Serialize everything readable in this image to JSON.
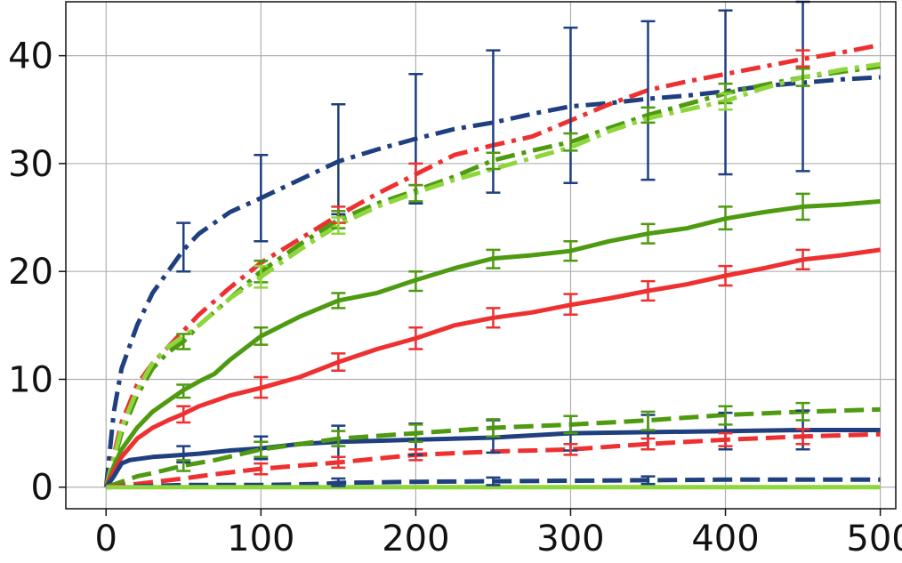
{
  "chart_data": {
    "type": "line",
    "title": "",
    "xlabel": "",
    "ylabel": "",
    "xlim": [
      -26,
      510
    ],
    "ylim": [
      -2,
      45
    ],
    "grid": true,
    "legend": "none",
    "x_ticks": [
      0,
      100,
      200,
      300,
      400,
      500
    ],
    "y_ticks": [
      0,
      10,
      20,
      30,
      40
    ],
    "series": [
      {
        "color": "#1f3f7f",
        "style": "dashdot",
        "x": [
          0,
          5,
          10,
          20,
          30,
          40,
          50,
          60,
          80,
          100,
          125,
          150,
          175,
          200,
          225,
          250,
          275,
          300,
          325,
          350,
          375,
          400,
          425,
          450,
          475,
          500
        ],
        "y": [
          0,
          7,
          11,
          15,
          18,
          20,
          22,
          23.5,
          25.5,
          26.8,
          28.5,
          30.2,
          31.3,
          32.3,
          33.2,
          33.8,
          34.6,
          35.3,
          35.6,
          36,
          36.3,
          36.7,
          37.2,
          37.5,
          37.8,
          38
        ],
        "err_x": [
          50,
          100,
          150,
          200,
          250,
          300,
          350,
          400,
          450
        ],
        "err_y": [
          22,
          26.8,
          30.3,
          32.3,
          33.9,
          35.3,
          35.8,
          36.6,
          37.3
        ],
        "err_lo": [
          20,
          22.8,
          25.3,
          26.3,
          27.3,
          28.2,
          28.5,
          29,
          29.3
        ],
        "err_hi": [
          24.5,
          30.8,
          35.5,
          38.3,
          40.5,
          42.6,
          43.2,
          44.2,
          45
        ]
      },
      {
        "color": "#ee3030",
        "style": "dashdot",
        "x": [
          0,
          10,
          20,
          30,
          40,
          50,
          60,
          80,
          100,
          125,
          150,
          175,
          200,
          225,
          250,
          275,
          300,
          325,
          350,
          375,
          400,
          425,
          450,
          475,
          500
        ],
        "y": [
          0,
          6,
          9.5,
          11.5,
          13,
          14.5,
          16,
          18.5,
          20.8,
          23,
          25.2,
          27.2,
          29,
          30.8,
          31.7,
          32.5,
          34,
          35.5,
          36.8,
          37.6,
          38.3,
          39,
          39.7,
          40.3,
          41
        ],
        "err_x": [
          150,
          200,
          450
        ],
        "err_y": [
          25.2,
          29,
          39.7
        ],
        "err_lo": [
          24.5,
          28,
          39
        ],
        "err_hi": [
          26,
          30,
          40.5
        ]
      },
      {
        "color": "#4e9a10",
        "style": "dashdot",
        "x": [
          0,
          10,
          20,
          30,
          40,
          50,
          60,
          80,
          100,
          125,
          150,
          175,
          200,
          225,
          250,
          275,
          300,
          325,
          350,
          375,
          400,
          425,
          450,
          475,
          500
        ],
        "y": [
          0,
          5,
          8.5,
          11,
          12.5,
          13.5,
          15,
          17.5,
          20,
          22.5,
          24.8,
          26.3,
          27.5,
          28.8,
          30.3,
          31.2,
          32,
          33.3,
          34.5,
          35.5,
          36.5,
          37.3,
          38,
          38.5,
          39
        ],
        "err_x": [
          50,
          100,
          150,
          200,
          250,
          300,
          350,
          400,
          450
        ],
        "err_y": [
          13.5,
          20,
          24.8,
          27.3,
          30.3,
          32,
          34.5,
          36.5,
          38
        ],
        "err_lo": [
          12.8,
          19,
          24,
          26.5,
          29.5,
          31.2,
          33.8,
          35.6,
          37.2
        ],
        "err_hi": [
          14.2,
          21,
          25.6,
          28,
          31,
          32.8,
          35.2,
          37.4,
          38.8
        ]
      },
      {
        "color": "#8ed63c",
        "style": "dashdot",
        "x": [
          0,
          10,
          20,
          30,
          40,
          50,
          60,
          80,
          100,
          125,
          150,
          175,
          200,
          225,
          250,
          275,
          300,
          325,
          350,
          375,
          400,
          425,
          450,
          475,
          500
        ],
        "y": [
          0,
          5.5,
          9,
          11.5,
          13,
          14,
          15,
          17.5,
          19.5,
          22,
          24.3,
          26,
          27.3,
          28.5,
          29.5,
          30.5,
          31.5,
          33,
          34.2,
          35,
          35.8,
          37,
          38,
          38.7,
          39.2
        ],
        "err_x": [
          100,
          150,
          400
        ],
        "err_y": [
          19.5,
          24.3,
          35.8
        ],
        "err_lo": [
          18.5,
          23.5,
          35
        ],
        "err_hi": [
          20.5,
          25,
          36.5
        ]
      },
      {
        "color": "#4e9a10",
        "style": "solid",
        "x": [
          0,
          5,
          10,
          20,
          30,
          40,
          50,
          60,
          70,
          80,
          100,
          125,
          150,
          175,
          200,
          225,
          250,
          275,
          300,
          325,
          350,
          375,
          400,
          425,
          450,
          475,
          500
        ],
        "y": [
          0,
          2,
          3.5,
          5.5,
          7,
          8,
          9,
          9.8,
          10.5,
          11.8,
          14,
          15.8,
          17.3,
          18,
          19.2,
          20.3,
          21.2,
          21.5,
          21.9,
          22.8,
          23.5,
          24,
          24.9,
          25.5,
          26,
          26.2,
          26.5
        ],
        "err_x": [
          50,
          100,
          150,
          200,
          250,
          300,
          350,
          400,
          450
        ],
        "err_y": [
          9,
          14,
          17.3,
          19.2,
          21.2,
          21.9,
          23.5,
          24.9,
          26
        ],
        "err_lo": [
          8.3,
          13.2,
          16.6,
          18.2,
          20.3,
          21,
          22.6,
          23.9,
          24.8
        ],
        "err_hi": [
          9.5,
          14.8,
          18,
          20,
          22,
          22.8,
          24.4,
          26,
          27.2
        ]
      },
      {
        "color": "#ee3030",
        "style": "solid",
        "x": [
          0,
          5,
          10,
          20,
          30,
          40,
          50,
          60,
          80,
          100,
          125,
          150,
          175,
          200,
          225,
          250,
          275,
          300,
          325,
          350,
          375,
          400,
          425,
          450,
          475,
          500
        ],
        "y": [
          0,
          1.5,
          2.8,
          4.5,
          5.5,
          6.2,
          6.8,
          7.5,
          8.5,
          9.2,
          10.2,
          11.6,
          12.8,
          13.8,
          15,
          15.7,
          16.2,
          16.9,
          17.5,
          18.2,
          18.8,
          19.6,
          20.3,
          21.1,
          21.5,
          22
        ],
        "err_x": [
          50,
          100,
          150,
          200,
          250,
          300,
          350,
          400,
          450
        ],
        "err_y": [
          6.8,
          9.2,
          11.6,
          13.8,
          15.7,
          16.9,
          18.2,
          19.6,
          21.1
        ],
        "err_lo": [
          6,
          8.3,
          10.8,
          12.8,
          14.8,
          16,
          17.3,
          18.7,
          20.2
        ],
        "err_hi": [
          7.5,
          10.2,
          12.4,
          14.8,
          16.6,
          17.9,
          19.1,
          20.5,
          22
        ]
      },
      {
        "color": "#1f3f7f",
        "style": "solid",
        "x": [
          0,
          5,
          10,
          15,
          20,
          30,
          40,
          50,
          60,
          80,
          100,
          125,
          150,
          175,
          200,
          250,
          300,
          350,
          400,
          450,
          500
        ],
        "y": [
          0,
          1,
          2.2,
          2.5,
          2.6,
          2.8,
          2.9,
          3,
          3.1,
          3.4,
          3.6,
          4,
          4.2,
          4.3,
          4.4,
          4.6,
          5,
          5.1,
          5.2,
          5.3,
          5.3
        ],
        "err_x": [
          50,
          100,
          150,
          200,
          250,
          300,
          350,
          400,
          450
        ],
        "err_y": [
          3,
          3.6,
          4.2,
          4.4,
          4.6,
          5,
          5.1,
          5.2,
          5.3
        ],
        "err_lo": [
          2.3,
          2.6,
          2.8,
          3,
          3.2,
          3.4,
          3.5,
          3.5,
          3.5
        ],
        "err_hi": [
          3.8,
          4.7,
          5.7,
          5.9,
          6.2,
          6.6,
          6.7,
          6.9,
          7.1
        ]
      },
      {
        "color": "#4e9a10",
        "style": "dashed",
        "x": [
          0,
          10,
          20,
          30,
          50,
          70,
          100,
          150,
          200,
          250,
          300,
          350,
          400,
          450,
          500
        ],
        "y": [
          0,
          0.5,
          1,
          1.3,
          2,
          2.5,
          3.5,
          4.5,
          5,
          5.5,
          5.8,
          6.2,
          6.7,
          7,
          7.2
        ],
        "err_x": [
          50,
          100,
          150,
          200,
          250,
          300,
          350,
          400,
          450
        ],
        "err_y": [
          2,
          3.5,
          4.5,
          5,
          5.5,
          5.8,
          6.2,
          6.7,
          7
        ],
        "err_lo": [
          1.5,
          2.8,
          3.8,
          4.2,
          4.7,
          5,
          5.3,
          5.8,
          6.2
        ],
        "err_hi": [
          2.5,
          4.2,
          5.2,
          5.8,
          6.3,
          6.6,
          7,
          7.5,
          7.8
        ]
      },
      {
        "color": "#ee3030",
        "style": "dashed",
        "x": [
          0,
          20,
          50,
          70,
          100,
          150,
          200,
          250,
          300,
          350,
          400,
          450,
          500
        ],
        "y": [
          0,
          0.3,
          0.8,
          1.2,
          1.7,
          2.3,
          3,
          3.3,
          3.5,
          4,
          4.4,
          4.7,
          4.9
        ],
        "err_x": [
          100,
          150,
          200,
          300,
          350,
          400,
          450
        ],
        "err_y": [
          1.7,
          2.3,
          3,
          3.5,
          4,
          4.4,
          4.7
        ],
        "err_lo": [
          1.2,
          1.8,
          2.5,
          3,
          3.5,
          3.8,
          4
        ],
        "err_hi": [
          2.2,
          2.8,
          3.5,
          4,
          4.5,
          5,
          5.4
        ]
      },
      {
        "color": "#1f3f7f",
        "style": "dashed",
        "x": [
          0,
          50,
          100,
          140,
          150,
          200,
          250,
          300,
          350,
          400,
          450,
          500
        ],
        "y": [
          0,
          0.2,
          0.2,
          0.3,
          0.4,
          0.5,
          0.55,
          0.6,
          0.65,
          0.7,
          0.7,
          0.7
        ],
        "err_x": [
          150,
          250,
          350
        ],
        "err_y": [
          0.4,
          0.55,
          0.65
        ],
        "err_lo": [
          0.1,
          0.2,
          0.3
        ],
        "err_hi": [
          0.8,
          0.9,
          1
        ]
      },
      {
        "color": "#8ed63c",
        "style": "solid",
        "x": [
          0,
          500
        ],
        "y": [
          0,
          0
        ],
        "err_x": [],
        "err_y": [],
        "err_lo": [],
        "err_hi": []
      }
    ]
  }
}
